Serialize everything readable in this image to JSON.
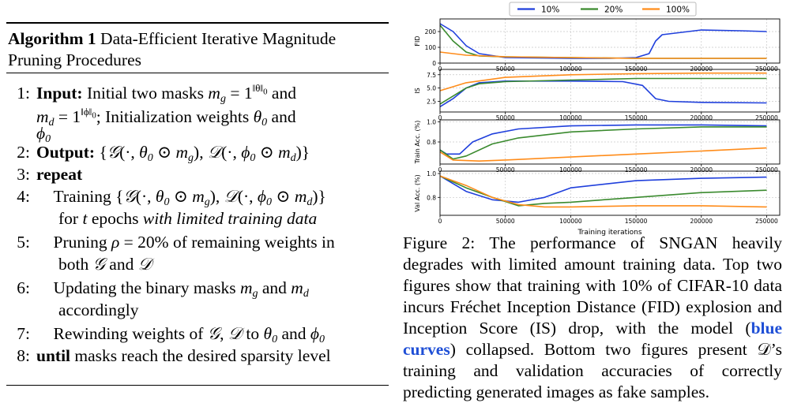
{
  "algorithm": {
    "label": "Algorithm 1",
    "title": "Data-Efficient Iterative Magnitude Pruning Procedures",
    "lines": [
      {
        "num": "1:",
        "kw": "Input:",
        "text": "Initial two masks"
      },
      {
        "num": "2:",
        "kw": "Output:"
      },
      {
        "num": "3:",
        "kw": "repeat"
      },
      {
        "num": "4:",
        "text": "Training",
        "cont": "for",
        "italic": "with limited training data"
      },
      {
        "num": "5:",
        "text": "Pruning",
        "cont": "both"
      },
      {
        "num": "6:",
        "text": "Updating the binary masks",
        "cont": "accordingly"
      },
      {
        "num": "7:",
        "text": "Rewinding weights of"
      },
      {
        "num": "8:",
        "kw": "until",
        "text": "masks reach the desired sparsity level"
      }
    ]
  },
  "figure": {
    "colors": {
      "10%": "#1f3fdc",
      "20%": "#3a8a2e",
      "100%": "#ff8c1a"
    },
    "xlabel": "Training iterations",
    "xticks": [
      "0",
      "50000",
      "100000",
      "150000",
      "200000",
      "250000"
    ]
  },
  "chart_data": [
    {
      "type": "line",
      "ylabel": "FID",
      "xlim": [
        0,
        260000
      ],
      "ylim": [
        0,
        280
      ],
      "yticks": [
        "0",
        "100",
        "200"
      ],
      "legend": [
        "10%",
        "20%",
        "100%"
      ],
      "legend_position": "top",
      "series": [
        {
          "name": "10%",
          "x": [
            0,
            10000,
            20000,
            30000,
            50000,
            100000,
            130000,
            150000,
            160000,
            165000,
            170000,
            200000,
            230000,
            250000
          ],
          "y": [
            250,
            200,
            110,
            60,
            35,
            30,
            30,
            35,
            60,
            140,
            180,
            210,
            205,
            200
          ]
        },
        {
          "name": "20%",
          "x": [
            0,
            10000,
            20000,
            30000,
            50000,
            100000,
            150000,
            200000,
            250000
          ],
          "y": [
            240,
            140,
            70,
            45,
            40,
            35,
            30,
            30,
            30
          ]
        },
        {
          "name": "100%",
          "x": [
            0,
            20000,
            50000,
            100000,
            150000,
            200000,
            250000
          ],
          "y": [
            70,
            50,
            40,
            35,
            30,
            30,
            30
          ]
        }
      ]
    },
    {
      "type": "line",
      "ylabel": "IS",
      "xlim": [
        0,
        260000
      ],
      "ylim": [
        0.5,
        8.5
      ],
      "yticks": [
        "2.5",
        "5.0",
        "7.5"
      ],
      "series": [
        {
          "name": "10%",
          "x": [
            0,
            10000,
            20000,
            30000,
            50000,
            100000,
            140000,
            155000,
            165000,
            175000,
            200000,
            250000
          ],
          "y": [
            1.5,
            3,
            5,
            6,
            6.3,
            6.3,
            6.2,
            5.5,
            3,
            2.5,
            2.3,
            2.2
          ]
        },
        {
          "name": "20%",
          "x": [
            0,
            10000,
            20000,
            30000,
            50000,
            100000,
            150000,
            200000,
            250000
          ],
          "y": [
            2,
            3.5,
            5,
            5.8,
            6.2,
            6.5,
            6.8,
            6.8,
            6.8
          ]
        },
        {
          "name": "100%",
          "x": [
            0,
            20000,
            50000,
            100000,
            150000,
            200000,
            250000
          ],
          "y": [
            4.5,
            6,
            7,
            7.5,
            7.7,
            7.8,
            7.8
          ]
        }
      ]
    },
    {
      "type": "line",
      "ylabel": "Train Acc. (%)",
      "xlim": [
        0,
        260000
      ],
      "ylim": [
        0.58,
        1.02
      ],
      "yticks": [
        "0.8",
        "1.0"
      ],
      "series": [
        {
          "name": "10%",
          "x": [
            0,
            5000,
            15000,
            25000,
            40000,
            60000,
            100000,
            150000,
            200000,
            250000
          ],
          "y": [
            0.72,
            0.68,
            0.68,
            0.8,
            0.88,
            0.93,
            0.96,
            0.97,
            0.97,
            0.96
          ]
        },
        {
          "name": "20%",
          "x": [
            0,
            10000,
            20000,
            40000,
            60000,
            100000,
            150000,
            200000,
            250000
          ],
          "y": [
            0.72,
            0.63,
            0.66,
            0.78,
            0.84,
            0.9,
            0.93,
            0.95,
            0.95
          ]
        },
        {
          "name": "100%",
          "x": [
            0,
            10000,
            30000,
            50000,
            100000,
            150000,
            200000,
            250000
          ],
          "y": [
            0.7,
            0.62,
            0.61,
            0.62,
            0.65,
            0.68,
            0.71,
            0.74
          ]
        }
      ]
    },
    {
      "type": "line",
      "ylabel": "Val Acc. (%)",
      "xlim": [
        0,
        260000
      ],
      "ylim": [
        0.65,
        1.02
      ],
      "yticks": [
        "0.8",
        "1.0"
      ],
      "series": [
        {
          "name": "10%",
          "x": [
            0,
            20000,
            40000,
            60000,
            80000,
            100000,
            150000,
            200000,
            250000
          ],
          "y": [
            0.98,
            0.85,
            0.78,
            0.76,
            0.8,
            0.88,
            0.94,
            0.96,
            0.97
          ]
        },
        {
          "name": "20%",
          "x": [
            0,
            20000,
            40000,
            60000,
            80000,
            100000,
            150000,
            200000,
            250000
          ],
          "y": [
            0.98,
            0.88,
            0.8,
            0.73,
            0.75,
            0.76,
            0.8,
            0.84,
            0.86
          ]
        },
        {
          "name": "100%",
          "x": [
            0,
            20000,
            40000,
            60000,
            80000,
            100000,
            150000,
            200000,
            250000
          ],
          "y": [
            0.98,
            0.9,
            0.8,
            0.74,
            0.72,
            0.72,
            0.73,
            0.73,
            0.72
          ]
        }
      ]
    }
  ],
  "caption": {
    "label": "Figure 2:",
    "text1": "The performance of SNGAN heavily degrades with limited amount training data. Top two figures show that training with 10% of CIFAR-10 data incurs Fréchet Inception Distance (FID) explosion and Inception Score (IS) drop, with the model (",
    "highlight": "blue curves",
    "text2": ") collapsed. Bottom two figures present 𝒟’s training and validation accuracies of correctly predicting generated images as fake samples."
  }
}
